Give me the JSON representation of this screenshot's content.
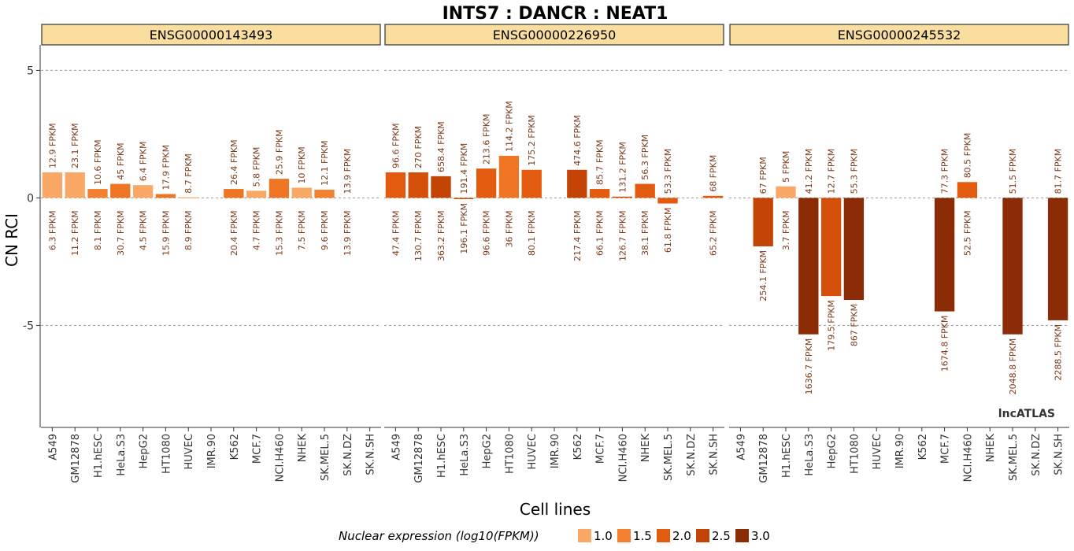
{
  "chart_data": {
    "type": "bar",
    "title": "INTS7 : DANCR : NEAT1",
    "xlabel": "Cell lines",
    "ylabel": "CN RCI",
    "ylim": [
      -9,
      6
    ],
    "yticks": [
      5,
      0,
      -5
    ],
    "ytick_labels": [
      "5",
      "0",
      "-5"
    ],
    "grid_lines": [
      5,
      0,
      -5
    ],
    "categories": [
      "A549",
      "GM12878",
      "H1.hESC",
      "HeLa.S3",
      "HepG2",
      "HT1080",
      "HUVEC",
      "IMR.90",
      "K562",
      "MCF.7",
      "NCI.H460",
      "NHEK",
      "SK.MEL.5",
      "SK.N.DZ",
      "SK.N.SH"
    ],
    "legend": {
      "title": "Nuclear expression (log10(FPKM))",
      "position": "bottom",
      "items": [
        {
          "label": "1.0",
          "color": "#f9a866"
        },
        {
          "label": "1.5",
          "color": "#f38130"
        },
        {
          "label": "2.0",
          "color": "#e25b0e"
        },
        {
          "label": "2.5",
          "color": "#c44406"
        },
        {
          "label": "3.0",
          "color": "#8c2c06"
        }
      ]
    },
    "watermark": "lncATLAS",
    "panels": [
      {
        "name": "ENSG00000143493",
        "values": [
          1.0,
          1.0,
          0.35,
          0.55,
          0.5,
          0.15,
          0.02,
          null,
          0.35,
          0.28,
          0.75,
          0.4,
          0.32,
          null,
          null
        ],
        "colors": [
          "#f9a866",
          "#f9a866",
          "#f38130",
          "#ee7524",
          "#f9a866",
          "#ee7524",
          "#f9a866",
          null,
          "#ee7524",
          "#f9a866",
          "#ee7524",
          "#f9a866",
          "#f38130",
          null,
          null
        ],
        "top_labels": [
          "12.9 FPKM",
          "23.1 FPKM",
          "10.6 FPKM",
          "45 FPKM",
          "6.4 FPKM",
          "17.9 FPKM",
          "8.7 FPKM",
          "",
          "26.4 FPKM",
          "5.8 FPKM",
          "25.9 FPKM",
          "10 FPKM",
          "12.1 FPKM",
          "13.9 FPKM",
          ""
        ],
        "bottom_labels": [
          "6.3 FPKM",
          "11.2 FPKM",
          "8.1 FPKM",
          "30.7 FPKM",
          "4.5 FPKM",
          "15.9 FPKM",
          "8.9 FPKM",
          "",
          "20.4 FPKM",
          "4.7 FPKM",
          "15.3 FPKM",
          "7.5 FPKM",
          "9.6 FPKM",
          "13.9 FPKM",
          ""
        ]
      },
      {
        "name": "ENSG00000226950",
        "values": [
          1.0,
          1.0,
          0.85,
          -0.05,
          1.15,
          1.65,
          1.1,
          null,
          1.1,
          0.35,
          0.05,
          0.55,
          -0.22,
          null,
          0.08
        ],
        "colors": [
          "#e25b0e",
          "#d4500a",
          "#c44406",
          "#d4500a",
          "#e25b0e",
          "#ee7524",
          "#e25b0e",
          null,
          "#c44406",
          "#e25b0e",
          "#d4500a",
          "#e25b0e",
          "#e25b0e",
          null,
          "#e25b0e"
        ],
        "top_labels": [
          "96.6 FPKM",
          "270 FPKM",
          "658.4 FPKM",
          "191.4 FPKM",
          "213.6 FPKM",
          "114.2 FPKM",
          "175.2 FPKM",
          "",
          "474.6 FPKM",
          "85.7 FPKM",
          "131.2 FPKM",
          "56.3 FPKM",
          "53.3 FPKM",
          "",
          "68 FPKM"
        ],
        "bottom_labels": [
          "47.4 FPKM",
          "130.7 FPKM",
          "363.2 FPKM",
          "196.1 FPKM",
          "96.6 FPKM",
          "36 FPKM",
          "80.1 FPKM",
          "",
          "217.4 FPKM",
          "66.1 FPKM",
          "126.7 FPKM",
          "38.1 FPKM",
          "61.8 FPKM",
          "",
          "65.2 FPKM"
        ]
      },
      {
        "name": "ENSG00000245532",
        "values": [
          null,
          -1.9,
          0.45,
          -5.35,
          -3.85,
          -4.0,
          null,
          null,
          null,
          -4.45,
          0.62,
          null,
          -5.35,
          null,
          -4.8
        ],
        "colors": [
          null,
          "#c44406",
          "#f9a866",
          "#8c2c06",
          "#d4500a",
          "#8c2c06",
          null,
          null,
          null,
          "#8c2c06",
          "#e25b0e",
          null,
          "#8c2c06",
          null,
          "#8c2c06"
        ],
        "top_labels": [
          "",
          "67 FPKM",
          "5 FPKM",
          "41.2 FPKM",
          "12.7 FPKM",
          "55.3 FPKM",
          "",
          "",
          "",
          "77.3 FPKM",
          "80.5 FPKM",
          "",
          "51.5 FPKM",
          "",
          "81.7 FPKM"
        ],
        "bottom_labels": [
          "",
          "254.1 FPKM",
          "3.7 FPKM",
          "1636.7 FPKM",
          "179.5 FPKM",
          "867 FPKM",
          "",
          "",
          "",
          "1674.8 FPKM",
          "52.5 FPKM",
          "",
          "2048.8 FPKM",
          "",
          "2288.5 FPKM"
        ]
      }
    ]
  }
}
